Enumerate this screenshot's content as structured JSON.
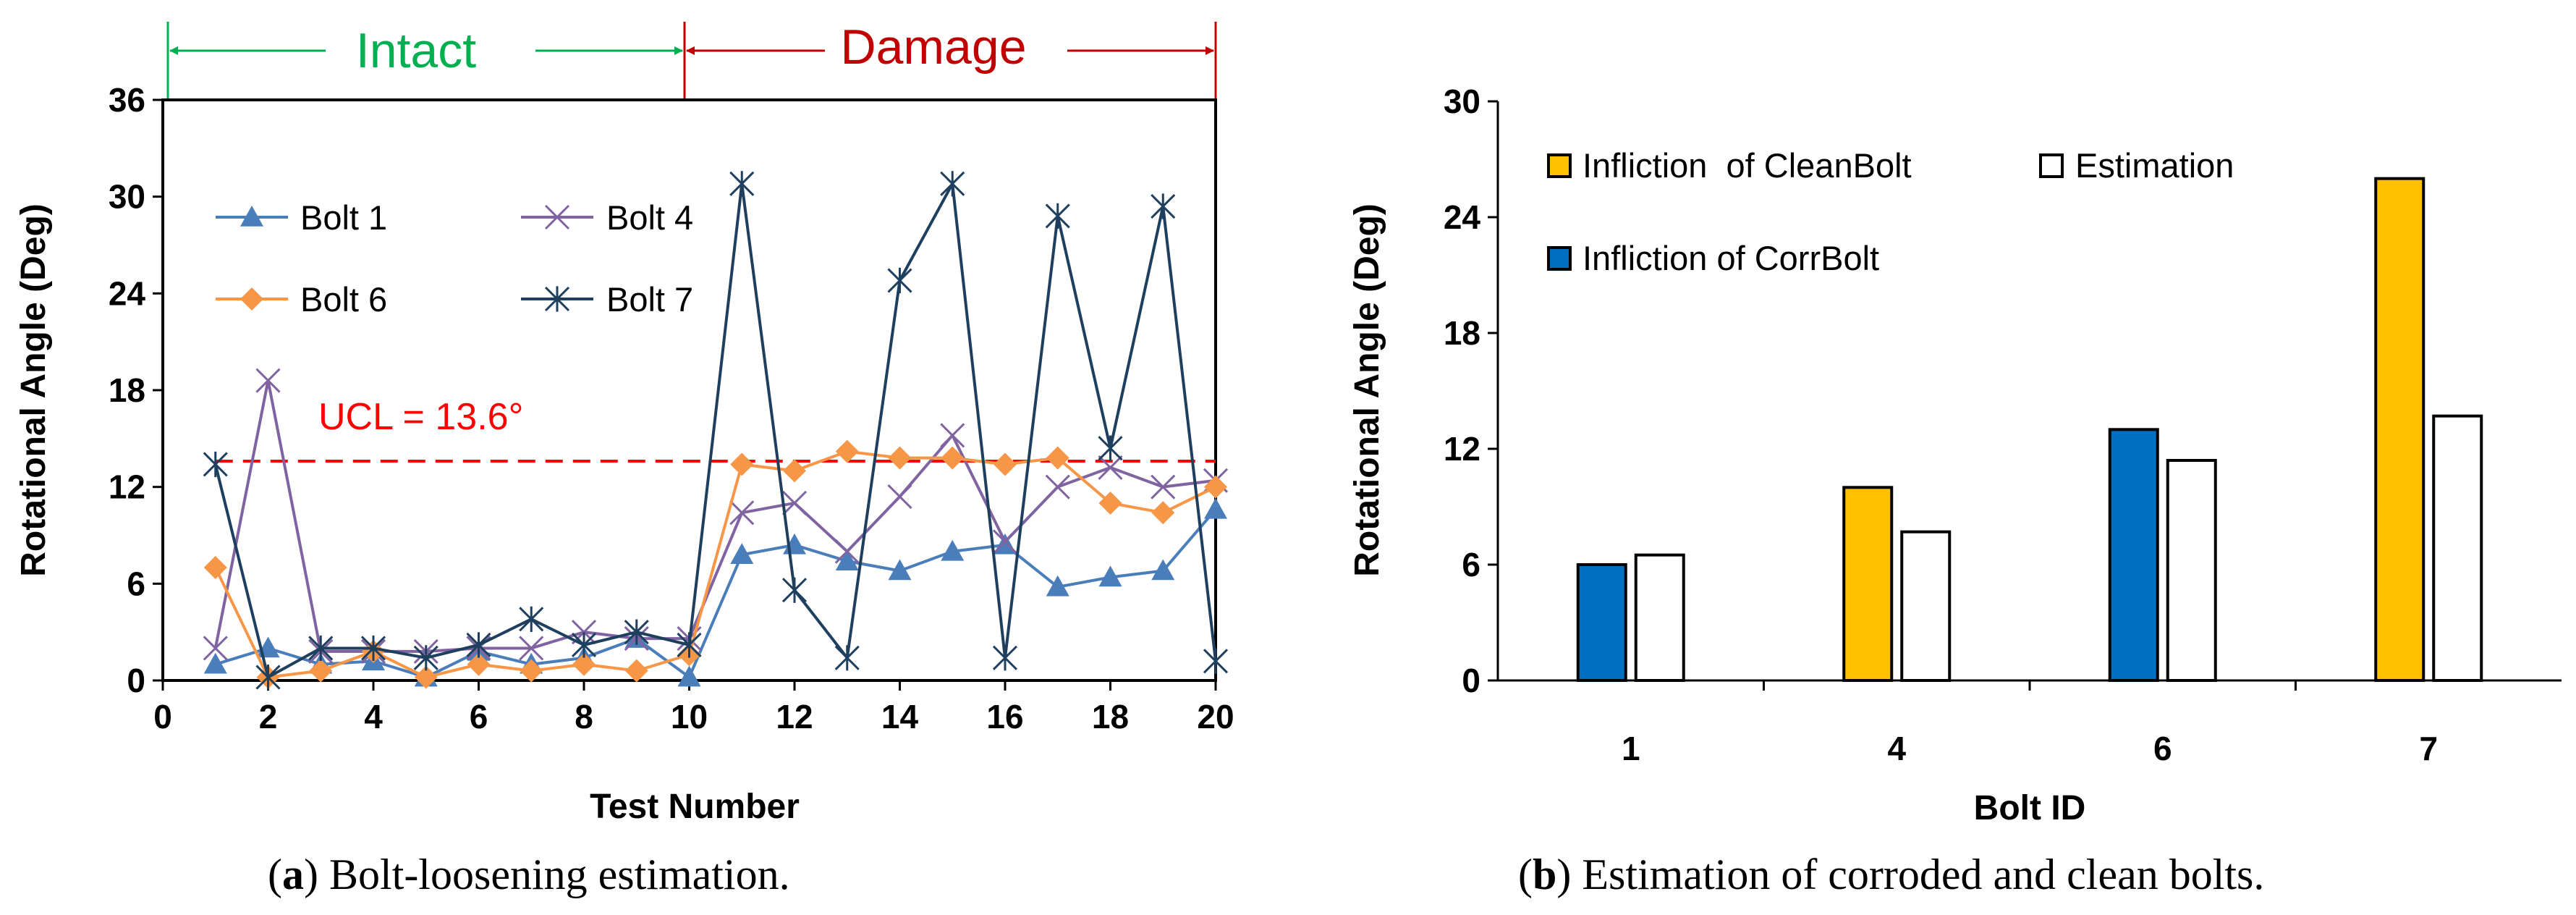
{
  "colors": {
    "bolt1": "#4A7EBB",
    "bolt4": "#8064A2",
    "bolt6": "#F79646",
    "bolt7": "#1F3F5F",
    "ucl": "#FF0000",
    "intact": "#00B050",
    "damage": "#C00000",
    "clean_bar": "#FFC000",
    "corr_bar": "#0070C0",
    "estimation_bar": "#FFFFFF"
  },
  "chart_data": [
    {
      "type": "line",
      "title": "",
      "xlabel": "Test Number",
      "ylabel": "Rotational Angle (Deg)",
      "xlim": [
        0,
        20
      ],
      "ylim": [
        0,
        36
      ],
      "xticks": [
        "0",
        "2",
        "4",
        "6",
        "8",
        "10",
        "12",
        "14",
        "16",
        "18",
        "20"
      ],
      "yticks": [
        "0",
        "6",
        "12",
        "18",
        "24",
        "30",
        "36"
      ],
      "x": [
        1,
        2,
        3,
        4,
        5,
        6,
        7,
        8,
        9,
        10,
        11,
        12,
        13,
        14,
        15,
        16,
        17,
        18,
        19,
        20
      ],
      "series": [
        {
          "name": "Bolt 1",
          "marker": "triangle",
          "values": [
            1.0,
            2.0,
            1.0,
            1.2,
            0.2,
            1.8,
            1.0,
            1.4,
            2.6,
            0.2,
            7.8,
            8.4,
            7.4,
            6.8,
            8.0,
            8.4,
            5.8,
            6.4,
            6.8,
            10.6
          ]
        },
        {
          "name": "Bolt 4",
          "marker": "x",
          "values": [
            2.0,
            18.6,
            1.8,
            1.8,
            1.8,
            2.0,
            2.0,
            3.0,
            2.6,
            2.6,
            10.4,
            11.0,
            8.0,
            11.4,
            15.2,
            8.6,
            12.0,
            13.2,
            12.0,
            12.4
          ]
        },
        {
          "name": "Bolt 6",
          "marker": "diamond",
          "values": [
            7.0,
            0.2,
            0.6,
            1.8,
            0.2,
            1.0,
            0.6,
            1.0,
            0.6,
            1.6,
            13.4,
            13.0,
            14.2,
            13.8,
            13.8,
            13.4,
            13.8,
            11.0,
            10.4,
            12.0
          ]
        },
        {
          "name": "Bolt 7",
          "marker": "star",
          "values": [
            13.4,
            0.2,
            2.0,
            2.0,
            1.4,
            2.2,
            3.8,
            2.2,
            3.0,
            2.2,
            30.8,
            5.6,
            1.4,
            24.8,
            30.8,
            1.4,
            28.8,
            14.4,
            29.4,
            1.2
          ]
        }
      ],
      "annotations": {
        "ucl_value": 13.6,
        "ucl_label": "UCL = 13.6°",
        "intact_label": "Intact",
        "damage_label": "Damage",
        "intact_range": [
          0,
          10
        ],
        "damage_range": [
          10,
          20
        ]
      },
      "legend": "upper-left, 2 columns",
      "caption_letter": "a",
      "caption_text": "Bolt-loosening estimation."
    },
    {
      "type": "bar",
      "title": "",
      "xlabel": "Bolt ID",
      "ylabel": "Rotational Angle (Deg)",
      "ylim": [
        0,
        30
      ],
      "yticks": [
        "0",
        "6",
        "12",
        "18",
        "24",
        "30"
      ],
      "categories": [
        "1",
        "4",
        "6",
        "7"
      ],
      "inflection_values": [
        6.0,
        10.0,
        13.0,
        26.0
      ],
      "inflection_types": [
        "corr",
        "clean",
        "corr",
        "clean"
      ],
      "series": [
        {
          "name": "Infliction  of CleanBolt",
          "color_key": "clean_bar"
        },
        {
          "name": "Infliction of CorrBolt",
          "color_key": "corr_bar"
        },
        {
          "name": "Estimation",
          "color_key": "estimation_bar",
          "values": [
            6.5,
            7.7,
            11.4,
            13.7
          ]
        }
      ],
      "legend": "upper-left",
      "caption_letter": "b",
      "caption_text": "Estimation of corroded and clean bolts."
    }
  ]
}
